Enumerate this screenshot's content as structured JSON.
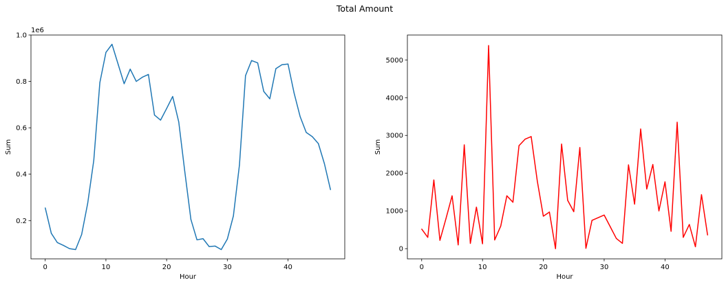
{
  "figure": {
    "suptitle": "Total Amount"
  },
  "chart_data": [
    {
      "type": "line",
      "title": "",
      "xlabel": "Hour",
      "ylabel": "Sum",
      "y_offset_label": "1e6",
      "xlim": [
        -2.35,
        49.35
      ],
      "ylim": [
        0.035,
        1.0
      ],
      "xticks": [
        0,
        10,
        20,
        30,
        40
      ],
      "yticks": [
        0.2,
        0.4,
        0.6,
        0.8,
        1.0
      ],
      "ytick_labels": [
        "0.2",
        "0.4",
        "0.6",
        "0.8",
        "1.0"
      ],
      "color": "#1f77b4",
      "grid": false,
      "series": [
        {
          "name": "",
          "x": [
            0,
            1,
            2,
            3,
            4,
            5,
            6,
            7,
            8,
            9,
            10,
            11,
            12,
            13,
            14,
            15,
            16,
            17,
            18,
            19,
            20,
            21,
            22,
            23,
            24,
            25,
            26,
            27,
            28,
            29,
            30,
            31,
            32,
            33,
            34,
            35,
            36,
            37,
            38,
            39,
            40,
            41,
            42,
            43,
            44,
            45,
            46,
            47
          ],
          "values": [
            0.255,
            0.145,
            0.105,
            0.093,
            0.079,
            0.075,
            0.14,
            0.275,
            0.46,
            0.795,
            0.925,
            0.96,
            0.875,
            0.79,
            0.853,
            0.8,
            0.818,
            0.83,
            0.655,
            0.633,
            0.683,
            0.735,
            0.625,
            0.41,
            0.205,
            0.117,
            0.122,
            0.088,
            0.09,
            0.075,
            0.12,
            0.22,
            0.44,
            0.825,
            0.89,
            0.88,
            0.757,
            0.725,
            0.855,
            0.872,
            0.875,
            0.75,
            0.648,
            0.58,
            0.562,
            0.532,
            0.445,
            0.333
          ]
        }
      ]
    },
    {
      "type": "line",
      "title": "",
      "xlabel": "Hour",
      "ylabel": "Sum",
      "xlim": [
        -2.35,
        49.35
      ],
      "ylim": [
        -270,
        5660
      ],
      "xticks": [
        0,
        10,
        20,
        30,
        40
      ],
      "yticks": [
        0,
        1000,
        2000,
        3000,
        4000,
        5000
      ],
      "color": "#ff0000",
      "grid": false,
      "series": [
        {
          "name": "",
          "x": [
            0,
            1,
            2,
            3,
            4,
            5,
            6,
            7,
            8,
            9,
            10,
            11,
            12,
            13,
            14,
            15,
            16,
            17,
            18,
            19,
            20,
            21,
            22,
            23,
            24,
            25,
            26,
            27,
            28,
            29,
            30,
            31,
            32,
            33,
            34,
            35,
            36,
            37,
            38,
            39,
            40,
            41,
            42,
            43,
            44,
            45,
            46,
            47
          ],
          "values": [
            520,
            300,
            1820,
            220,
            800,
            1400,
            100,
            2750,
            140,
            1100,
            130,
            5380,
            230,
            600,
            1400,
            1230,
            2730,
            2900,
            2970,
            1800,
            860,
            970,
            0,
            2770,
            1280,
            980,
            2680,
            10,
            750,
            820,
            890,
            580,
            270,
            140,
            2220,
            1180,
            3170,
            1580,
            2230,
            1000,
            1770,
            460,
            3350,
            300,
            640,
            50,
            1430,
            360
          ]
        }
      ]
    }
  ]
}
